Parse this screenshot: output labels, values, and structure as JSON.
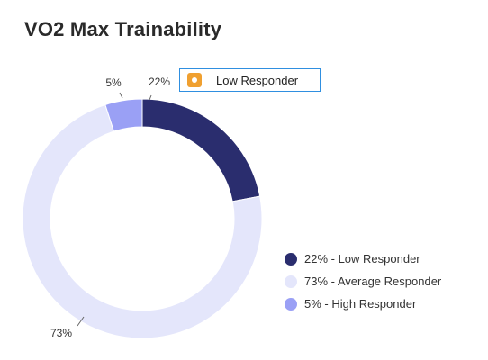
{
  "header": {
    "title": "VO2 Max Trainability"
  },
  "tooltip": {
    "label": "Low Responder",
    "icon": "circle-marker-icon",
    "color": "#f0a030"
  },
  "chart_data": {
    "type": "pie",
    "donut": true,
    "title": "VO2 Max Trainability",
    "categories": [
      "Low Responder",
      "Average Responder",
      "High Responder"
    ],
    "values": [
      22,
      73,
      5
    ],
    "colors": [
      "#2a2d6e",
      "#e4e6fb",
      "#9aa0f5"
    ],
    "data_labels": [
      "22%",
      "73%",
      "5%"
    ],
    "legend": {
      "position": "right",
      "items": [
        "22% - Low Responder",
        "73% - Average Responder",
        "5% - High Responder"
      ]
    }
  }
}
